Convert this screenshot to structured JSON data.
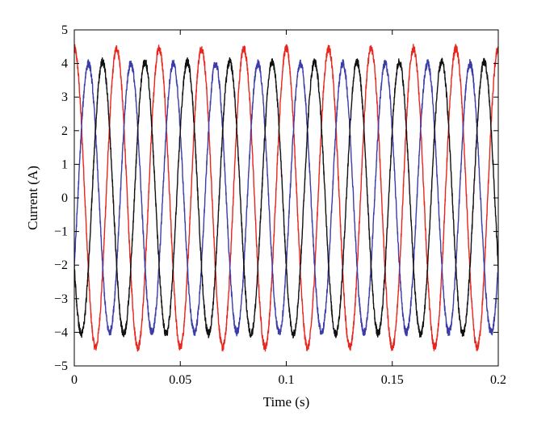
{
  "chart_data": {
    "type": "line",
    "title": "",
    "xlabel": "Time (s)",
    "ylabel": "Current (A)",
    "xlim": [
      0,
      0.2
    ],
    "ylim": [
      -5,
      5
    ],
    "x_ticks": [
      0,
      0.05,
      0.1,
      0.15,
      0.2
    ],
    "x_tick_labels": [
      "0",
      "0.05",
      "0.1",
      "0.15",
      "0.2"
    ],
    "y_ticks": [
      5,
      4,
      3,
      2,
      1,
      0,
      -1,
      -2,
      -3,
      -4,
      -5
    ],
    "y_tick_labels": [
      "5",
      "4",
      "3",
      "2",
      "1",
      "0",
      "−1",
      "−2",
      "−3",
      "−4",
      "−5"
    ],
    "grid": false,
    "legend": "none",
    "waveform": {
      "kind": "sinusoid",
      "frequency_hz": 50,
      "noise_amplitude": 0.12
    },
    "series": [
      {
        "color": "#e8261e",
        "amplitude": 4.45,
        "phase_deg": 90
      },
      {
        "color": "#3c3ca8",
        "amplitude": 4.0,
        "phase_deg": -30
      },
      {
        "color": "#111111",
        "amplitude": 4.05,
        "phase_deg": -150
      }
    ]
  }
}
